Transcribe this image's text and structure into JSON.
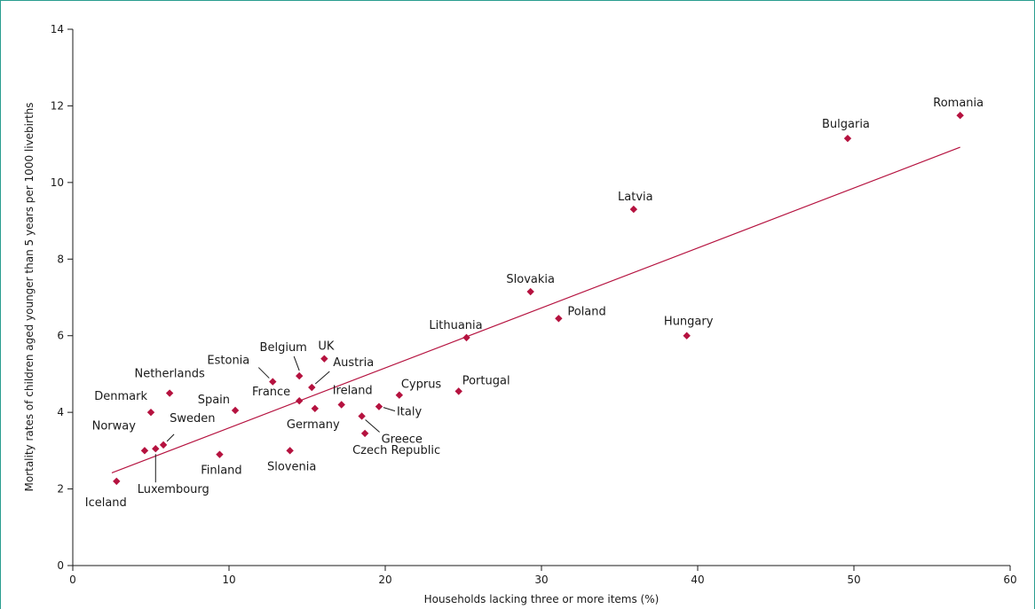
{
  "chart_data": {
    "type": "scatter",
    "title": "",
    "xlabel": "Households lacking three or more items (%)",
    "ylabel": "Mortality rates of children aged younger than 5 years per 1000 livebirths",
    "xlim": [
      0,
      60
    ],
    "ylim": [
      0,
      14
    ],
    "xticks": [
      "0",
      "10",
      "20",
      "30",
      "40",
      "50",
      "60"
    ],
    "yticks": [
      "0",
      "2",
      "4",
      "6",
      "8",
      "10",
      "12",
      "14"
    ],
    "grid": false,
    "marker_color": "#b5123f",
    "line_color": "#b5123f",
    "points": [
      {
        "label": "Iceland",
        "x": 2.8,
        "y": 2.2
      },
      {
        "label": "Norway",
        "x": 4.6,
        "y": 3.0
      },
      {
        "label": "Luxembourg",
        "x": 5.3,
        "y": 3.05
      },
      {
        "label": "Sweden",
        "x": 5.8,
        "y": 3.15
      },
      {
        "label": "Denmark",
        "x": 5.0,
        "y": 4.0
      },
      {
        "label": "Netherlands",
        "x": 6.2,
        "y": 4.5
      },
      {
        "label": "Finland",
        "x": 9.4,
        "y": 2.9
      },
      {
        "label": "Spain",
        "x": 10.4,
        "y": 4.05
      },
      {
        "label": "Estonia",
        "x": 12.8,
        "y": 4.8
      },
      {
        "label": "Slovenia",
        "x": 13.9,
        "y": 3.0
      },
      {
        "label": "France",
        "x": 14.5,
        "y": 4.3
      },
      {
        "label": "Belgium",
        "x": 14.5,
        "y": 4.95
      },
      {
        "label": "Austria",
        "x": 15.3,
        "y": 4.65
      },
      {
        "label": "Germany",
        "x": 15.5,
        "y": 4.1
      },
      {
        "label": "UK",
        "x": 16.1,
        "y": 5.4
      },
      {
        "label": "Ireland",
        "x": 17.2,
        "y": 4.2
      },
      {
        "label": "Greece",
        "x": 18.5,
        "y": 3.9
      },
      {
        "label": "Czech Republic",
        "x": 18.7,
        "y": 3.45
      },
      {
        "label": "Italy",
        "x": 19.6,
        "y": 4.15
      },
      {
        "label": "Cyprus",
        "x": 20.9,
        "y": 4.45
      },
      {
        "label": "Portugal",
        "x": 24.7,
        "y": 4.55
      },
      {
        "label": "Lithuania",
        "x": 25.2,
        "y": 5.95
      },
      {
        "label": "Slovakia",
        "x": 29.3,
        "y": 7.15
      },
      {
        "label": "Poland",
        "x": 31.1,
        "y": 6.45
      },
      {
        "label": "Latvia",
        "x": 35.9,
        "y": 9.3
      },
      {
        "label": "Hungary",
        "x": 39.3,
        "y": 6.0
      },
      {
        "label": "Bulgaria",
        "x": 49.6,
        "y": 11.15
      },
      {
        "label": "Romania",
        "x": 56.8,
        "y": 11.75
      }
    ],
    "trendline": {
      "x": [
        2.5,
        56.8
      ],
      "y": [
        2.42,
        10.92
      ]
    }
  }
}
